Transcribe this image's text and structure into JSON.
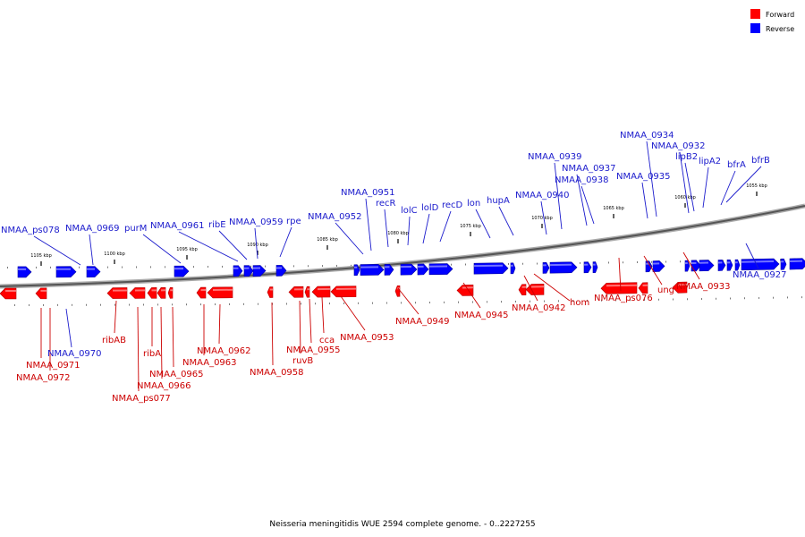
{
  "colors": {
    "forward": "#ff0000",
    "forward_dark": "#b30000",
    "reverse": "#0000ff",
    "reverse_dark": "#0000a0",
    "label_forward": "#cc0000",
    "label_reverse": "#1a1acc"
  },
  "legend": {
    "forward": "Forward",
    "reverse": "Reverse"
  },
  "caption": "Neisseria meningitidis WUE 2594 complete genome. - 0..2227255",
  "ticks": [
    "1105 kbp",
    "1100 kbp",
    "1095 kbp",
    "1090 kbp",
    "1085 kbp",
    "1080 kbp",
    "1075 kbp",
    "1070 kbp",
    "1065 kbp",
    "1060 kbp",
    "1055 kbp"
  ],
  "genes_reverse": [
    "NMAA_ps078",
    "NMAA_0969",
    "purM",
    "NMAA_0961",
    "ribE",
    "NMAA_0959",
    "rpe",
    "NMAA_0952",
    "NMAA_0951",
    "recR",
    "lolC",
    "lolD",
    "recD",
    "lon",
    "hupA",
    "NMAA_0940",
    "NMAA_0939",
    "NMAA_0937",
    "NMAA_0938",
    "NMAA_0935",
    "NMAA_0934",
    "NMAA_0932",
    "lipB2",
    "lipA2",
    "bfrA",
    "bfrB",
    "NMAA_0927",
    "NMAA_0970"
  ],
  "genes_forward": [
    "ribAB",
    "NMAA_0971",
    "NMAA_0972",
    "ribA",
    "NMAA_0966",
    "NMAA_ps077",
    "NMAA_0965",
    "NMAA_0962",
    "NMAA_0963",
    "NMAA_0958",
    "ruvB",
    "NMAA_0955",
    "cca",
    "NMAA_0953",
    "NMAA_0949",
    "NMAA_0945",
    "NMAA_0942",
    "hom",
    "NMAA_ps076",
    "ung",
    "NMAA_0933"
  ]
}
